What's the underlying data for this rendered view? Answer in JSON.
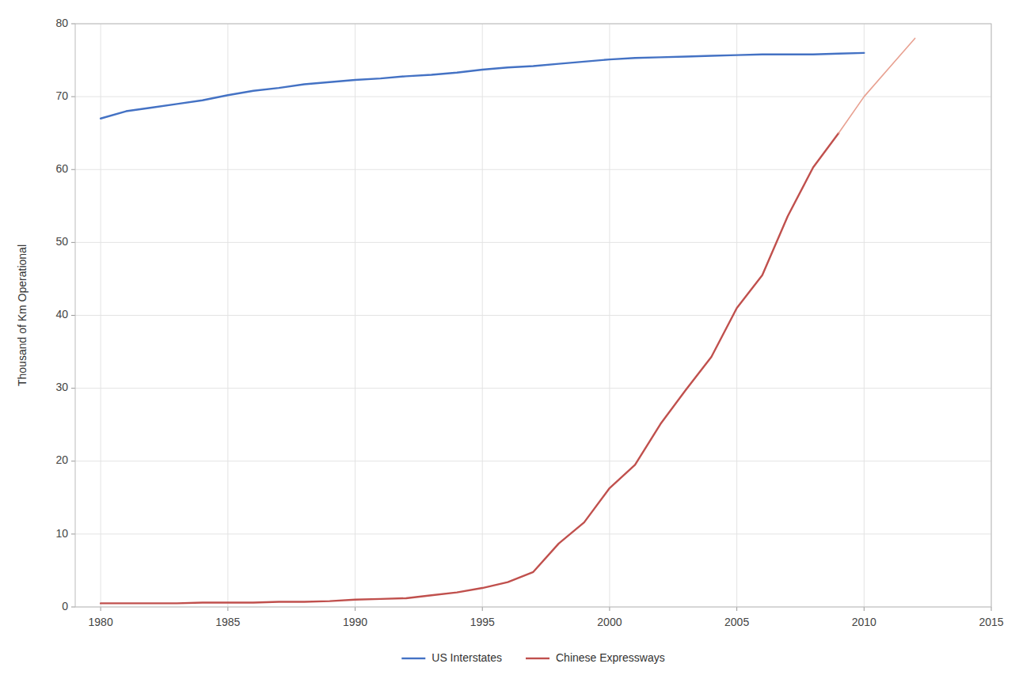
{
  "chart_data": {
    "type": "line",
    "ylabel": "Thousand of Km Operational",
    "xlim": [
      1979,
      2015
    ],
    "ylim": [
      0,
      80
    ],
    "xticks": [
      1980,
      1985,
      1990,
      1995,
      2000,
      2005,
      2010,
      2015
    ],
    "yticks": [
      0,
      10,
      20,
      30,
      40,
      50,
      60,
      70,
      80
    ],
    "grid": true,
    "legend": "bottom",
    "series": [
      {
        "name": "US Interstates",
        "color": "#4472C4",
        "x": [
          1980,
          1981,
          1982,
          1983,
          1984,
          1985,
          1986,
          1987,
          1988,
          1989,
          1990,
          1991,
          1992,
          1993,
          1994,
          1995,
          1996,
          1997,
          1998,
          1999,
          2000,
          2001,
          2002,
          2003,
          2004,
          2005,
          2006,
          2007,
          2008,
          2009,
          2010
        ],
        "values": [
          67.0,
          68.0,
          68.5,
          69.0,
          69.5,
          70.2,
          70.8,
          71.2,
          71.7,
          72.0,
          72.3,
          72.5,
          72.8,
          73.0,
          73.3,
          73.7,
          74.0,
          74.2,
          74.5,
          74.8,
          75.1,
          75.3,
          75.4,
          75.5,
          75.6,
          75.7,
          75.8,
          75.8,
          75.8,
          75.9,
          76.0
        ]
      },
      {
        "name": "Chinese Expressways",
        "color": "#C0504D",
        "x": [
          1980,
          1981,
          1982,
          1983,
          1984,
          1985,
          1986,
          1987,
          1988,
          1989,
          1990,
          1991,
          1992,
          1993,
          1994,
          1995,
          1996,
          1997,
          1998,
          1999,
          2000,
          2001,
          2002,
          2003,
          2004,
          2005,
          2006,
          2007,
          2008,
          2009
        ],
        "values": [
          0.5,
          0.5,
          0.5,
          0.5,
          0.6,
          0.6,
          0.6,
          0.7,
          0.7,
          0.8,
          1.0,
          1.1,
          1.2,
          1.6,
          2.0,
          2.6,
          3.4,
          4.8,
          8.7,
          11.6,
          16.3,
          19.5,
          25.1,
          29.8,
          34.3,
          41.0,
          45.5,
          53.6,
          60.3,
          65.0
        ]
      },
      {
        "color": "#e8a090",
        "x": [
          2009,
          2010,
          2011,
          2012
        ],
        "values": [
          65.0,
          70.0,
          74.0,
          78.0
        ]
      }
    ]
  }
}
